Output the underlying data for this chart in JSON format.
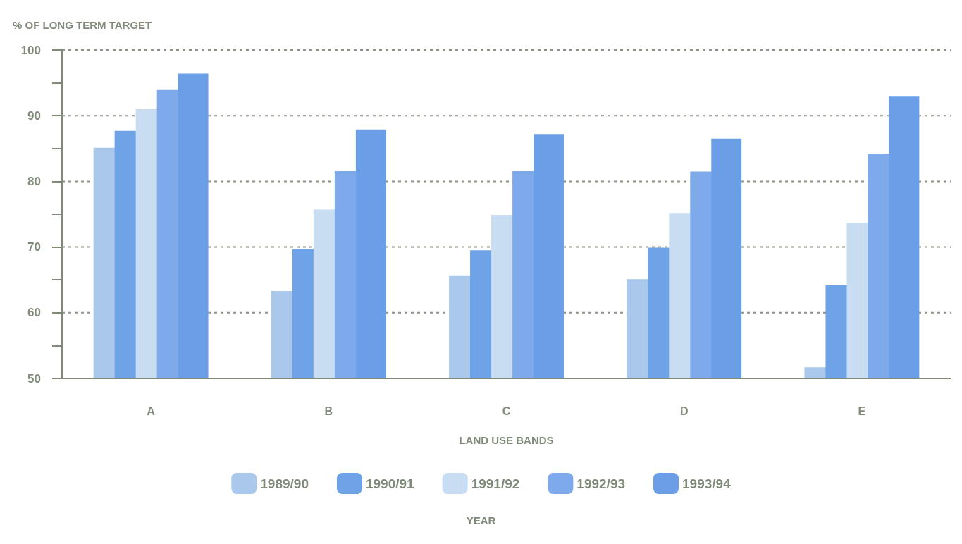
{
  "chart_data": {
    "type": "bar",
    "ylabel": "% OF LONG TERM TARGET",
    "xlabel": "LAND USE BANDS",
    "legend_title": "YEAR",
    "categories": [
      "A",
      "B",
      "C",
      "D",
      "E"
    ],
    "series": [
      {
        "name": "1989/90",
        "color": "#a9c8ec",
        "values": [
          85.1,
          63.3,
          65.7,
          65.1,
          51.7
        ]
      },
      {
        "name": "1990/91",
        "color": "#6fa3e8",
        "values": [
          87.7,
          69.7,
          69.5,
          69.9,
          64.2
        ]
      },
      {
        "name": "1991/92",
        "color": "#c8dcf2",
        "values": [
          91.0,
          75.7,
          74.9,
          75.2,
          73.7
        ]
      },
      {
        "name": "1992/93",
        "color": "#7eaaeb",
        "values": [
          93.9,
          81.6,
          81.6,
          81.5,
          84.2
        ]
      },
      {
        "name": "1993/94",
        "color": "#6a9fe8",
        "values": [
          96.4,
          87.9,
          87.2,
          86.5,
          93.0
        ]
      }
    ],
    "ylim": [
      50,
      100
    ],
    "yticks": [
      50,
      {
        "value": 55,
        "label": null
      },
      60,
      {
        "value": 65,
        "label": null
      },
      70,
      {
        "value": 75,
        "label": null
      },
      80,
      {
        "value": 85,
        "label": null
      },
      90,
      {
        "value": 95,
        "label": null
      },
      100
    ],
    "grid": "y",
    "legend": "bottom"
  }
}
